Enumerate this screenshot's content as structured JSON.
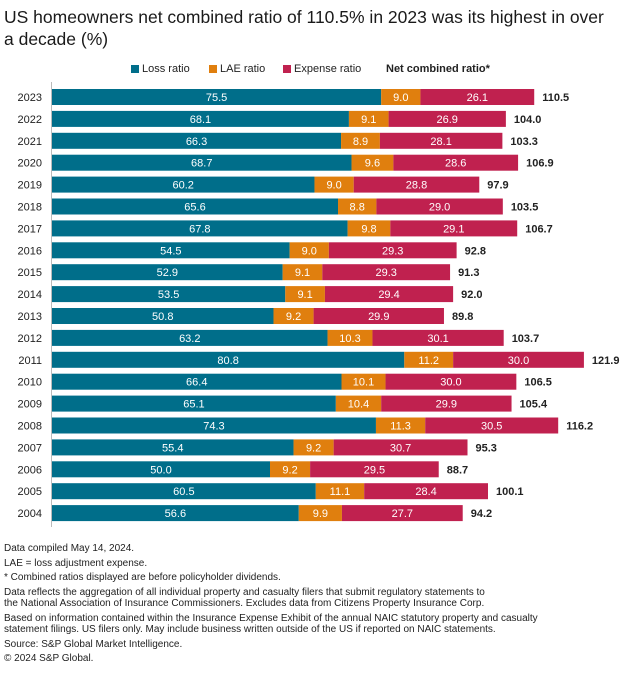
{
  "title": "US homeowners net combined ratio of 110.5% in 2023 was its highest in over a decade (%)",
  "chart_data": {
    "type": "bar",
    "orientation": "horizontal",
    "stacked": true,
    "title": "US homeowners net combined ratio of 110.5% in 2023 was its highest in over a decade (%)",
    "categories": [
      "2023",
      "2022",
      "2021",
      "2020",
      "2019",
      "2018",
      "2017",
      "2016",
      "2015",
      "2014",
      "2013",
      "2012",
      "2011",
      "2010",
      "2009",
      "2008",
      "2007",
      "2006",
      "2005",
      "2004"
    ],
    "series": [
      {
        "name": "Loss ratio",
        "color": "#006E8A",
        "values": [
          75.5,
          68.1,
          66.3,
          68.7,
          60.2,
          65.6,
          67.8,
          54.5,
          52.9,
          53.5,
          50.8,
          63.2,
          80.8,
          66.4,
          65.1,
          74.3,
          55.4,
          50.0,
          60.5,
          56.6
        ]
      },
      {
        "name": "LAE ratio",
        "color": "#E07F0E",
        "values": [
          9.0,
          9.1,
          8.9,
          9.6,
          9.0,
          8.8,
          9.8,
          9.0,
          9.1,
          9.1,
          9.2,
          10.3,
          11.2,
          10.1,
          10.4,
          11.3,
          9.2,
          9.2,
          11.1,
          9.9
        ]
      },
      {
        "name": "Expense ratio",
        "color": "#C0214F",
        "values": [
          26.1,
          26.9,
          28.1,
          28.6,
          28.8,
          29.0,
          29.1,
          29.3,
          29.3,
          29.4,
          29.9,
          30.1,
          30.0,
          30.0,
          29.9,
          30.5,
          30.7,
          29.5,
          28.4,
          27.7
        ]
      }
    ],
    "totals_label": "Net combined ratio*",
    "totals": [
      110.5,
      104.0,
      103.3,
      106.9,
      97.9,
      103.5,
      106.7,
      92.8,
      91.3,
      92.0,
      89.8,
      103.7,
      121.9,
      106.5,
      105.4,
      116.2,
      95.3,
      88.7,
      100.1,
      94.2
    ],
    "legend_position": "top",
    "grid": false,
    "xlim": [
      0,
      125
    ]
  },
  "notes": [
    [
      "Data compiled May 14, 2024."
    ],
    [
      "LAE = loss adjustment expense."
    ],
    [
      "* Combined ratios displayed are before policyholder dividends."
    ],
    [
      "Data reflects the aggregation of all individual property and casualty filers that submit regulatory statements to",
      "the National Association of Insurance Commissioners. Excludes data from Citizens Property Insurance Corp."
    ],
    [
      "Based on information contained within the Insurance Expense Exhibit of the annual NAIC statutory property and casualty",
      "statement filings. US filers only. May include business written outside of the US if reported on NAIC statements."
    ],
    [
      "Source: S&P Global Market Intelligence."
    ],
    [
      "© 2024 S&P Global."
    ]
  ]
}
